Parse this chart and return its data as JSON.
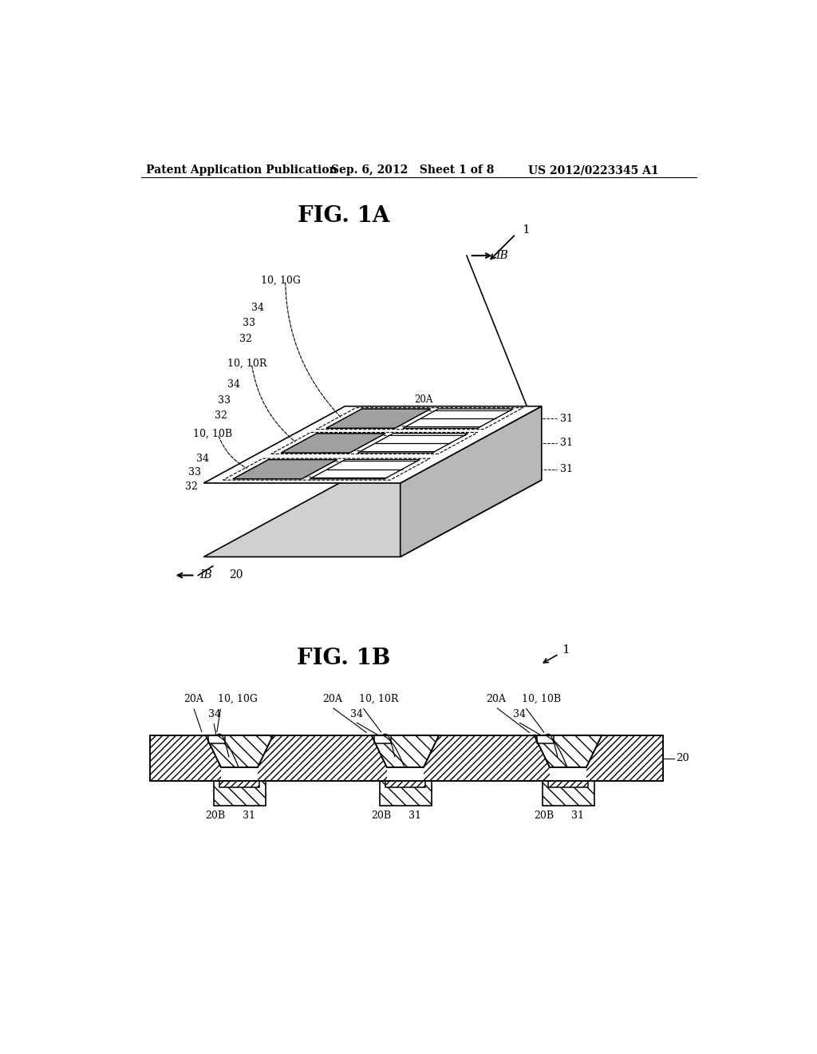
{
  "header_left": "Patent Application Publication",
  "header_mid": "Sep. 6, 2012   Sheet 1 of 8",
  "header_right": "US 2012/0223345 A1",
  "fig1a_title": "FIG. 1A",
  "fig1b_title": "FIG. 1B",
  "bg_color": "#ffffff",
  "line_color": "#000000"
}
